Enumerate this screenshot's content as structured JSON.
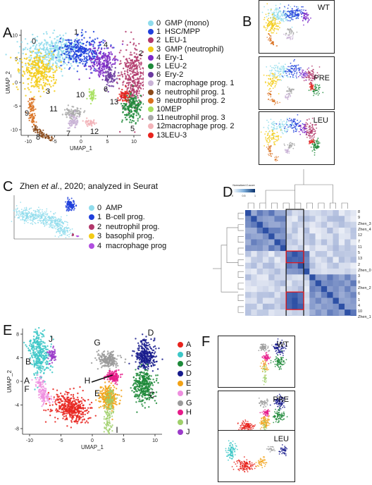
{
  "panels": {
    "a": {
      "letter": "A",
      "axis_x": "UMAP_1",
      "axis_y": "UMAP_2",
      "x_ticks": [
        "-10",
        "-5",
        "0",
        "5",
        "10"
      ],
      "y_ticks": [
        "10",
        "5",
        "0",
        "-5",
        "-10"
      ],
      "cluster_labels": [
        "0",
        "1",
        "2",
        "3",
        "4",
        "5",
        "6",
        "7",
        "8",
        "9",
        "10",
        "11",
        "12",
        "13"
      ],
      "legend": [
        {
          "num": "0",
          "label": "GMP (mono)",
          "color": "#8fdcec"
        },
        {
          "num": "1",
          "label": "HSC/MPP",
          "color": "#1f3fdc"
        },
        {
          "num": "2",
          "label": "LEU-1",
          "color": "#b2386b"
        },
        {
          "num": "3",
          "label": "GMP (neutrophil)",
          "color": "#f3cb16"
        },
        {
          "num": "4",
          "label": "Ery-1",
          "color": "#7d28c7"
        },
        {
          "num": "5",
          "label": "LEU-2",
          "color": "#1e8a3a"
        },
        {
          "num": "6",
          "label": "Ery-2",
          "color": "#6b3aa0"
        },
        {
          "num": "7",
          "label": "macrophage prog. 1",
          "color": "#c9b3d6"
        },
        {
          "num": "8",
          "label": "neutrophil prog. 1",
          "color": "#8b4a1a"
        },
        {
          "num": "9",
          "label": "neutrophil prog. 2",
          "color": "#d9701e"
        },
        {
          "num": "10",
          "label": "MEP",
          "color": "#a8e05f"
        },
        {
          "num": "11",
          "label": "neutrophil prog. 3",
          "color": "#a9a9a9"
        },
        {
          "num": "12",
          "label": "macrophage prog. 2",
          "color": "#f2b3b8"
        },
        {
          "num": "13",
          "label": "LEU-3",
          "color": "#e8231d"
        }
      ]
    },
    "b": {
      "letter": "B",
      "conditions": [
        "WT",
        "PRE",
        "LEU"
      ]
    },
    "c": {
      "letter": "C",
      "title_pre": "Zhen ",
      "title_em": "et al",
      "title_post": "., 2020; analyzed in Seurat",
      "legend": [
        {
          "num": "0",
          "label": "AMP",
          "color": "#8fdcec"
        },
        {
          "num": "1",
          "label": "B-cell prog.",
          "color": "#1f3fdc"
        },
        {
          "num": "2",
          "label": "neutrophil prog.",
          "color": "#b2386b"
        },
        {
          "num": "3",
          "label": "basophil prog.",
          "color": "#f3cb16"
        },
        {
          "num": "4",
          "label": "macrophage prog",
          "color": "#b14fe0"
        }
      ]
    },
    "d": {
      "letter": "D",
      "scale_title": "Normalized Z-score",
      "scale_ticks": [
        "0",
        "0.5",
        "1"
      ],
      "row_labels": [
        "8",
        "9",
        "Zhen_3",
        "Zhen_4",
        "12",
        "7",
        "11",
        "5",
        "13",
        "2",
        "Zhen_0",
        "3",
        "0",
        "Zhen_2",
        "6",
        "1",
        "4",
        "10",
        "Zhen_1"
      ]
    },
    "e": {
      "letter": "E",
      "axis_x": "UMAP_1",
      "axis_y": "UMAP_2",
      "x_ticks": [
        "-10",
        "-5",
        "0",
        "5",
        "10"
      ],
      "y_ticks": [
        "8",
        "4",
        "0",
        "-4",
        "-8"
      ],
      "cluster_labels": [
        "A",
        "B",
        "C",
        "D",
        "E",
        "F",
        "G",
        "H",
        "I",
        "J"
      ],
      "legend": [
        {
          "label": "A",
          "color": "#e8231d"
        },
        {
          "label": "B",
          "color": "#3cc7c7"
        },
        {
          "label": "C",
          "color": "#1e8a3a"
        },
        {
          "label": "D",
          "color": "#161a8c"
        },
        {
          "label": "E",
          "color": "#f2a216"
        },
        {
          "label": "F",
          "color": "#ee8fdf"
        },
        {
          "label": "G",
          "color": "#9a9a9a"
        },
        {
          "label": "H",
          "color": "#e61c8a"
        },
        {
          "label": "I",
          "color": "#9fcf6a"
        },
        {
          "label": "J",
          "color": "#9b3bc9"
        }
      ]
    },
    "f": {
      "letter": "F",
      "conditions": [
        "WT",
        "PRE",
        "LEU"
      ]
    }
  },
  "chart_data": [
    {
      "type": "scatter",
      "panel": "A",
      "xlabel": "UMAP_1",
      "ylabel": "UMAP_2",
      "xlim": [
        -11,
        13
      ],
      "ylim": [
        -12,
        13
      ],
      "series": [
        {
          "name": "0 GMP (mono)",
          "cx": -3.5,
          "cy": 5.5
        },
        {
          "name": "1 HSC/MPP",
          "cx": 2.5,
          "cy": 5.5
        },
        {
          "name": "2 LEU-1",
          "cx": 11,
          "cy": 2
        },
        {
          "name": "3 GMP (neutrophil)",
          "cx": -7.5,
          "cy": 1.5
        },
        {
          "name": "4 Ery-1",
          "cx": 5.5,
          "cy": 5.5
        },
        {
          "name": "5 LEU-2",
          "cx": 10,
          "cy": -4.5
        },
        {
          "name": "6 Ery-2",
          "cx": 7,
          "cy": 1.5
        },
        {
          "name": "7 macrophage prog. 1",
          "cx": -2.5,
          "cy": -6
        },
        {
          "name": "8 neutrophil prog. 1",
          "cx": -6.5,
          "cy": -9
        },
        {
          "name": "9 neutrophil prog. 2",
          "cx": -8.5,
          "cy": -5
        },
        {
          "name": "10 MEP",
          "cx": 3.5,
          "cy": -2
        },
        {
          "name": "11 neutrophil prog. 3",
          "cx": -2,
          "cy": -5
        },
        {
          "name": "12 macrophage prog. 2",
          "cx": 2,
          "cy": -9
        },
        {
          "name": "13 LEU-3",
          "cx": 9,
          "cy": -3
        }
      ]
    },
    {
      "type": "scatter",
      "panel": "C",
      "series": [
        {
          "name": "0 AMP"
        },
        {
          "name": "1 B-cell prog."
        },
        {
          "name": "2 neutrophil prog."
        },
        {
          "name": "3 basophil prog."
        },
        {
          "name": "4 macrophage prog"
        }
      ]
    },
    {
      "type": "heatmap",
      "panel": "D",
      "scale_title": "Normalized Z-score",
      "value_range": [
        0,
        1
      ],
      "rows": [
        "8",
        "9",
        "Zhen_3",
        "Zhen_4",
        "12",
        "7",
        "11",
        "5",
        "13",
        "2",
        "Zhen_0",
        "3",
        "0",
        "Zhen_2",
        "6",
        "1",
        "4",
        "10",
        "Zhen_1"
      ]
    },
    {
      "type": "scatter",
      "panel": "E",
      "xlabel": "UMAP_1",
      "ylabel": "UMAP_2",
      "xlim": [
        -11,
        11
      ],
      "ylim": [
        -9,
        10
      ],
      "series": [
        {
          "name": "A",
          "cx": -3,
          "cy": -3
        },
        {
          "name": "B",
          "cx": -9,
          "cy": 5
        },
        {
          "name": "C",
          "cx": 8,
          "cy": 1
        },
        {
          "name": "D",
          "cx": 8,
          "cy": 7
        },
        {
          "name": "E",
          "cx": 2,
          "cy": 0
        },
        {
          "name": "F",
          "cx": -7,
          "cy": 0
        },
        {
          "name": "G",
          "cx": 3,
          "cy": 6
        },
        {
          "name": "H",
          "cx": 3,
          "cy": 3
        },
        {
          "name": "I",
          "cx": 3,
          "cy": -5
        },
        {
          "name": "J",
          "cx": -8,
          "cy": 5
        }
      ]
    }
  ]
}
